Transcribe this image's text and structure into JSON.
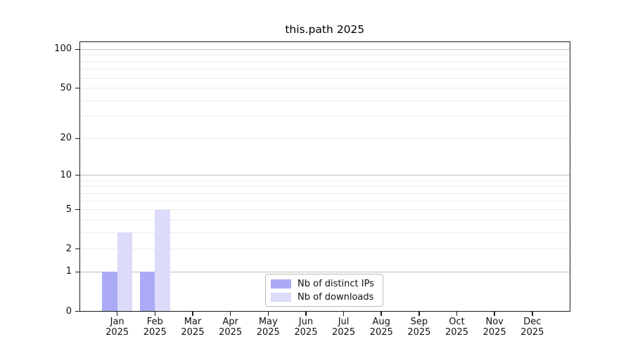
{
  "chart_data": {
    "type": "bar",
    "title": "this.path 2025",
    "x_months": [
      "Jan",
      "Feb",
      "Mar",
      "Apr",
      "May",
      "Jun",
      "Jul",
      "Aug",
      "Sep",
      "Oct",
      "Nov",
      "Dec"
    ],
    "x_year": "2025",
    "series": [
      {
        "name": "Nb of distinct IPs",
        "color": "#abaaf7",
        "values": [
          1,
          1,
          0,
          0,
          0,
          0,
          0,
          0,
          0,
          0,
          0,
          0
        ]
      },
      {
        "name": "Nb of downloads",
        "color": "#dcdbfa",
        "values": [
          3,
          5,
          0,
          0,
          0,
          0,
          0,
          0,
          0,
          0,
          0,
          0
        ]
      }
    ],
    "y_scale": "log1p",
    "ylim": [
      0,
      115
    ],
    "y_ticks": [
      0,
      1,
      2,
      5,
      10,
      20,
      50,
      100
    ],
    "y_major_gridlines": [
      1,
      10,
      100
    ],
    "y_minor_gridlines": [
      2,
      3,
      4,
      5,
      6,
      7,
      8,
      9,
      20,
      30,
      40,
      50,
      60,
      70,
      80,
      90
    ],
    "grid": true,
    "legend_position": "lower-center-inside"
  },
  "colors": {
    "background": "#ffffff",
    "axis": "#1a1a1a",
    "text": "#111111",
    "major_grid": "#bdbdbd",
    "minor_grid": "#ececec",
    "legend_border": "#b9b9b9"
  }
}
